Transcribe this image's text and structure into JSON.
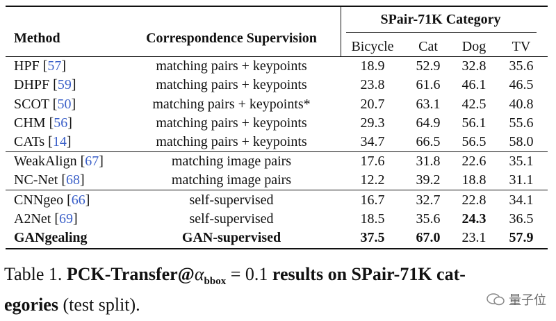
{
  "table": {
    "header": {
      "method": "Method",
      "supervision": "Correspondence Supervision",
      "group": "SPair-71K Category",
      "columns": [
        "Bicycle",
        "Cat",
        "Dog",
        "TV"
      ]
    },
    "rows": [
      {
        "method": "HPF",
        "ref": [
          "[",
          "57",
          "]"
        ],
        "supervision": "matching pairs + keypoints",
        "values": [
          "18.9",
          "52.9",
          "32.8",
          "35.6"
        ]
      },
      {
        "method": "DHPF",
        "ref": [
          "[",
          "59",
          "]"
        ],
        "supervision": "matching pairs + keypoints",
        "values": [
          "23.8",
          "61.6",
          "46.1",
          "46.5"
        ]
      },
      {
        "method": "SCOT",
        "ref": [
          "[",
          "50",
          "]"
        ],
        "supervision": "matching pairs + keypoints*",
        "values": [
          "20.7",
          "63.1",
          "42.5",
          "40.8"
        ]
      },
      {
        "method": "CHM",
        "ref": [
          "[",
          "56",
          "]"
        ],
        "supervision": "matching pairs + keypoints",
        "values": [
          "29.3",
          "64.9",
          "56.1",
          "55.6"
        ]
      },
      {
        "method": "CATs",
        "ref": [
          "[",
          "14",
          "]"
        ],
        "supervision": "matching pairs + keypoints",
        "values": [
          "34.7",
          "66.5",
          "56.5",
          "58.0"
        ]
      },
      {
        "method": "WeakAlign",
        "ref": [
          "[",
          "67",
          "]"
        ],
        "supervision": "matching image pairs",
        "values": [
          "17.6",
          "31.8",
          "22.6",
          "35.1"
        ]
      },
      {
        "method": "NC-Net",
        "ref": [
          "[",
          "68",
          "]"
        ],
        "supervision": "matching image pairs",
        "values": [
          "12.2",
          "39.2",
          "18.8",
          "31.1"
        ]
      },
      {
        "method": "CNNgeo",
        "ref": [
          "[",
          "66",
          "]"
        ],
        "supervision": "self-supervised",
        "values": [
          "16.7",
          "32.7",
          "22.8",
          "34.1"
        ]
      },
      {
        "method": "A2Net",
        "ref": [
          "[",
          "69",
          "]"
        ],
        "supervision": "self-supervised",
        "values": [
          "18.5",
          "35.6",
          "24.3",
          "36.5"
        ]
      },
      {
        "method": "GANgealing",
        "supervision": "GAN-supervised",
        "values": [
          "37.5",
          "67.0",
          "23.1",
          "57.9"
        ]
      }
    ]
  },
  "caption": {
    "label": "Table 1.",
    "metric": "PCK-Transfer@",
    "symbol": "α",
    "subscript": "bbox",
    "equation": "= 0.1",
    "bold_text_1": "results on SPair-71K cat-",
    "bold_text_2": "egories",
    "rest": "(test split)."
  },
  "watermark": "量子位"
}
